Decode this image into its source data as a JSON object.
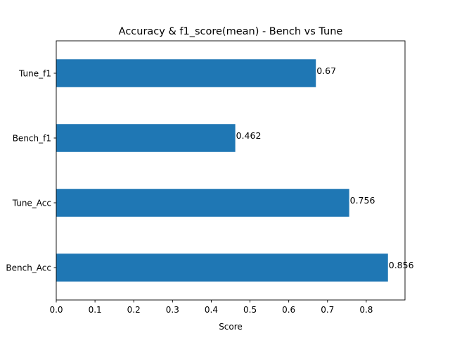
{
  "chart_data": {
    "type": "bar",
    "orientation": "horizontal",
    "title": "Accuracy & f1_score(mean) - Bench vs Tune",
    "xlabel": "Score",
    "ylabel": "",
    "categories": [
      "Bench_Acc",
      "Tune_Acc",
      "Bench_f1",
      "Tune_f1"
    ],
    "values": [
      0.856,
      0.756,
      0.462,
      0.67
    ],
    "data_labels": [
      "0.856",
      "0.756",
      "0.462",
      "0.67"
    ],
    "xlim": [
      0,
      0.9
    ],
    "xticks": [
      0.0,
      0.1,
      0.2,
      0.3,
      0.4,
      0.5,
      0.6,
      0.7,
      0.8
    ],
    "xtick_labels": [
      "0.0",
      "0.1",
      "0.2",
      "0.3",
      "0.4",
      "0.5",
      "0.6",
      "0.7",
      "0.8"
    ],
    "bar_color": "#1f77b4",
    "grid": false,
    "legend": "none"
  }
}
